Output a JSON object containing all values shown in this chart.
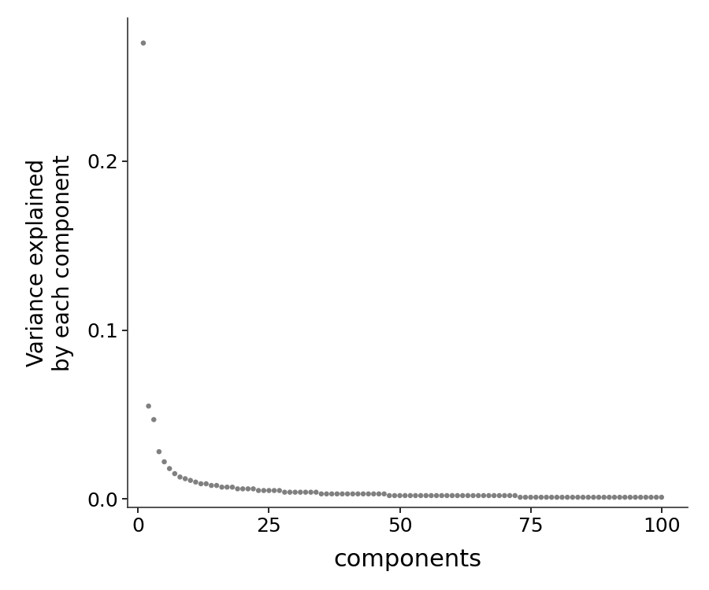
{
  "title": "",
  "xlabel": "components",
  "ylabel": "Variance explained\nby each component",
  "xlim": [
    -2,
    105
  ],
  "ylim": [
    -0.005,
    0.285
  ],
  "n_components": 100,
  "point_color": "#808080",
  "background_color": "#ffffff",
  "xlabel_fontsize": 22,
  "ylabel_fontsize": 20,
  "tick_fontsize": 18,
  "point_size": 22,
  "yticks": [
    0.0,
    0.1,
    0.2
  ],
  "xticks": [
    0,
    25,
    50,
    75,
    100
  ],
  "variance_values": [
    0.27,
    0.055,
    0.047,
    0.028,
    0.022,
    0.018,
    0.015,
    0.013,
    0.012,
    0.011,
    0.01,
    0.009,
    0.009,
    0.008,
    0.008,
    0.007,
    0.007,
    0.007,
    0.006,
    0.006,
    0.006,
    0.006,
    0.005,
    0.005,
    0.005,
    0.005,
    0.005,
    0.004,
    0.004,
    0.004,
    0.004,
    0.004,
    0.004,
    0.004,
    0.003,
    0.003,
    0.003,
    0.003,
    0.003,
    0.003,
    0.003,
    0.003,
    0.003,
    0.003,
    0.003,
    0.003,
    0.003,
    0.002,
    0.002,
    0.002,
    0.002,
    0.002,
    0.002,
    0.002,
    0.002,
    0.002,
    0.002,
    0.002,
    0.002,
    0.002,
    0.002,
    0.002,
    0.002,
    0.002,
    0.002,
    0.002,
    0.002,
    0.002,
    0.002,
    0.002,
    0.002,
    0.002,
    0.001,
    0.001,
    0.001,
    0.001,
    0.001,
    0.001,
    0.001,
    0.001,
    0.001,
    0.001,
    0.001,
    0.001,
    0.001,
    0.001,
    0.001,
    0.001,
    0.001,
    0.001,
    0.001,
    0.001,
    0.001,
    0.001,
    0.001,
    0.001,
    0.001,
    0.001,
    0.001,
    0.001
  ]
}
